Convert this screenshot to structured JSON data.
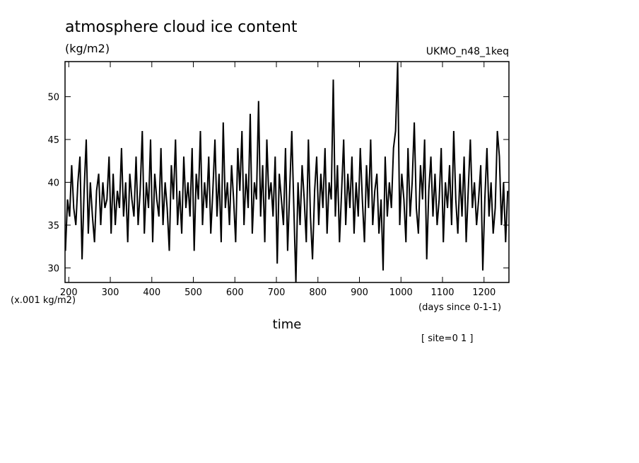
{
  "chart_data": {
    "type": "line",
    "title": "atmosphere cloud ice content",
    "subtitle": "(kg/m2)",
    "model": "UKMO_n48_1keq",
    "y_units": "(x.001 kg/m2)",
    "x_units": "(days since 0-1-1)",
    "xlabel": "time",
    "annotation": "[ site=0 1 ]",
    "color": "#000000",
    "xlim": [
      191,
      1260
    ],
    "ylim": [
      28.3,
      54.1
    ],
    "xticks": [
      200,
      300,
      400,
      500,
      600,
      700,
      800,
      900,
      1000,
      1100,
      1200
    ],
    "yticks": [
      30,
      35,
      40,
      45,
      50
    ],
    "x": [
      192,
      197,
      202,
      207,
      212,
      217,
      222,
      227,
      232,
      237,
      242,
      247,
      252,
      257,
      262,
      267,
      272,
      277,
      282,
      287,
      292,
      297,
      302,
      307,
      312,
      317,
      322,
      327,
      332,
      337,
      342,
      347,
      352,
      357,
      362,
      367,
      372,
      377,
      382,
      387,
      392,
      397,
      402,
      407,
      412,
      417,
      422,
      427,
      432,
      437,
      442,
      447,
      452,
      457,
      462,
      467,
      472,
      477,
      482,
      487,
      492,
      497,
      502,
      507,
      512,
      517,
      522,
      527,
      532,
      537,
      542,
      547,
      552,
      557,
      562,
      567,
      572,
      577,
      582,
      587,
      592,
      597,
      602,
      607,
      612,
      617,
      622,
      627,
      632,
      637,
      642,
      647,
      652,
      657,
      662,
      667,
      672,
      677,
      682,
      687,
      692,
      697,
      702,
      707,
      712,
      717,
      722,
      727,
      732,
      737,
      742,
      747,
      752,
      757,
      762,
      767,
      772,
      777,
      782,
      787,
      792,
      797,
      802,
      807,
      812,
      817,
      822,
      827,
      832,
      837,
      842,
      847,
      852,
      857,
      862,
      867,
      872,
      877,
      882,
      887,
      892,
      897,
      902,
      907,
      912,
      917,
      922,
      927,
      932,
      937,
      942,
      947,
      952,
      957,
      962,
      967,
      972,
      977,
      982,
      987,
      992,
      997,
      1002,
      1007,
      1012,
      1017,
      1022,
      1027,
      1032,
      1037,
      1042,
      1047,
      1052,
      1057,
      1062,
      1067,
      1072,
      1077,
      1082,
      1087,
      1092,
      1097,
      1102,
      1107,
      1112,
      1117,
      1122,
      1127,
      1132,
      1137,
      1142,
      1147,
      1152,
      1157,
      1162,
      1167,
      1172,
      1177,
      1182,
      1187,
      1192,
      1197,
      1202,
      1207,
      1212,
      1217,
      1222,
      1227,
      1232,
      1237,
      1242,
      1247,
      1252,
      1257
    ],
    "values": [
      32,
      38,
      36,
      42,
      37,
      35,
      40,
      43,
      31,
      39,
      45,
      34,
      40,
      36,
      33,
      39,
      41,
      35,
      40,
      37,
      38,
      43,
      34,
      41,
      35,
      39,
      37,
      44,
      36,
      40,
      33,
      41,
      38,
      36,
      43,
      35,
      39,
      46,
      34,
      40,
      37,
      45,
      33,
      41,
      38,
      36,
      44,
      35,
      40,
      37,
      32,
      42,
      38,
      45,
      35,
      39,
      34,
      43,
      37,
      40,
      36,
      44,
      32,
      41,
      38,
      46,
      35,
      40,
      37,
      43,
      34,
      39,
      45,
      36,
      41,
      33,
      47,
      37,
      40,
      35,
      42,
      38,
      33,
      44,
      39,
      46,
      35,
      41,
      37,
      48,
      34,
      40,
      38,
      49.5,
      36,
      42,
      33,
      45,
      38,
      40,
      36,
      43,
      30.5,
      41,
      38,
      35,
      44,
      32,
      39,
      46,
      37,
      28.3,
      40,
      35,
      42,
      38,
      33,
      45,
      36,
      31,
      39,
      43,
      35,
      41,
      37,
      44,
      34,
      40,
      38,
      52,
      36,
      42,
      33,
      39,
      45,
      35,
      41,
      37,
      43,
      34,
      40,
      36,
      44,
      38,
      33,
      42,
      37,
      45,
      35,
      39,
      41,
      34,
      38,
      29.7,
      43,
      36,
      40,
      37,
      44,
      46,
      54,
      35,
      41,
      38,
      33,
      44,
      36,
      40,
      47,
      37,
      34,
      42,
      38,
      45,
      31,
      39,
      43,
      36,
      41,
      35,
      38,
      44,
      33,
      40,
      37,
      42,
      35,
      46,
      38,
      34,
      41,
      36,
      43,
      33,
      39,
      45,
      37,
      40,
      35,
      38,
      42,
      29.7,
      38,
      44,
      36,
      40,
      34,
      37,
      46,
      43,
      35,
      40,
      33,
      39
    ]
  }
}
